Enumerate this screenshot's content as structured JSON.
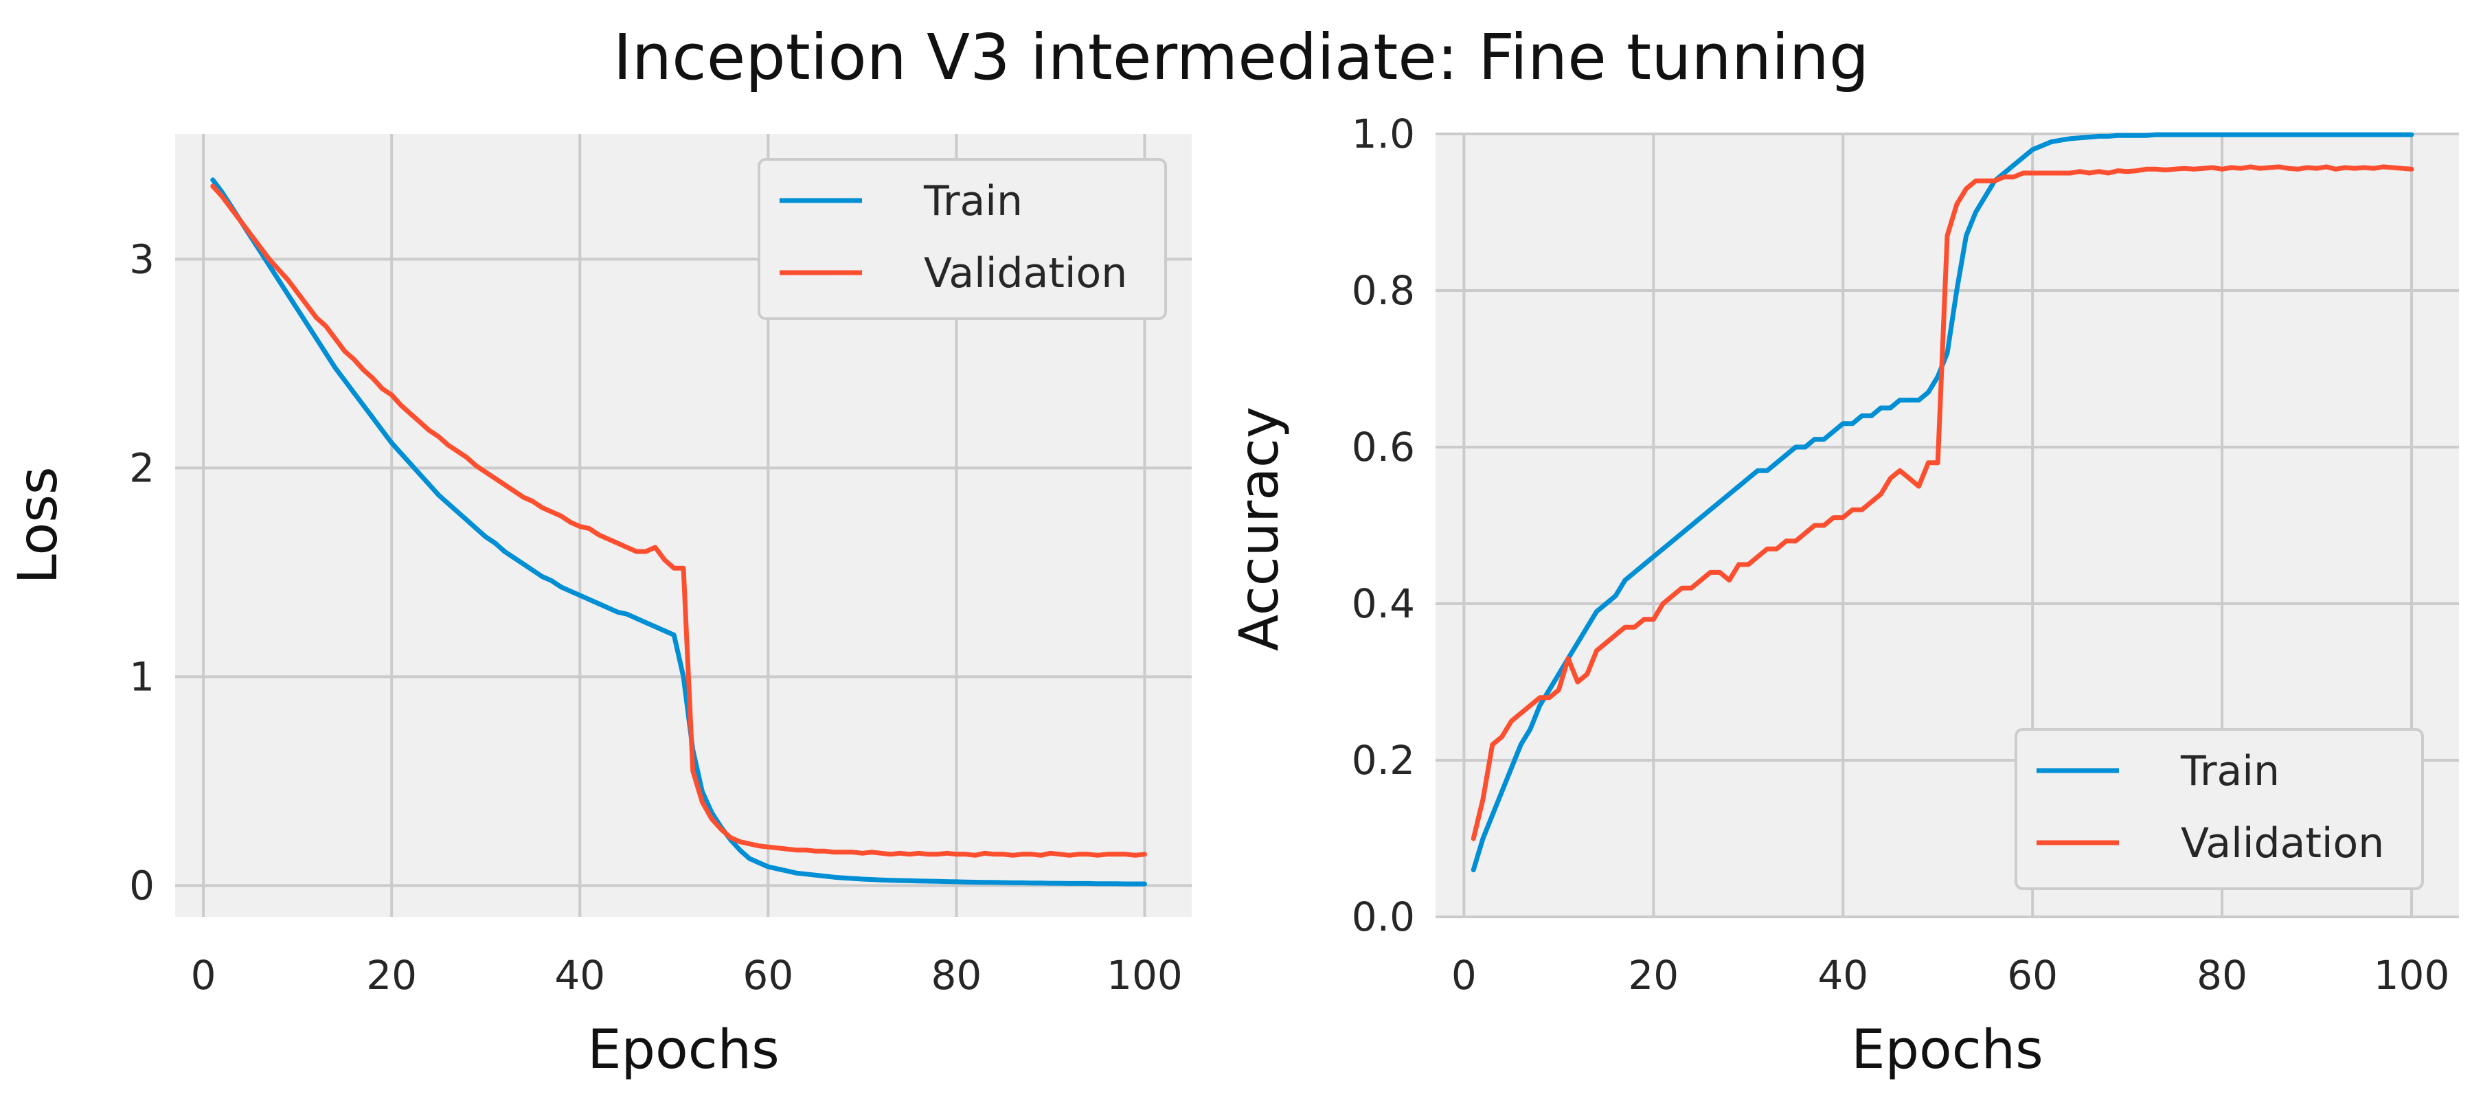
{
  "title": "Inception V3 intermediate: Fine tunning",
  "colors": {
    "train": "#008fd5",
    "validation": "#fc4f30",
    "plot_bg": "#f0f0f0",
    "grid": "#cbcbcb",
    "legend_bg": "#f0f0f0",
    "legend_border": "#cccccc"
  },
  "chart_data": [
    {
      "type": "line",
      "xlabel": "Epochs",
      "ylabel": "Loss",
      "xlim": [
        -3,
        105
      ],
      "ylim": [
        -0.15,
        3.6
      ],
      "xticks": [
        0,
        20,
        40,
        60,
        80,
        100
      ],
      "xtick_labels": [
        "0",
        "20",
        "40",
        "60",
        "80",
        "100"
      ],
      "yticks": [
        0,
        1,
        2,
        3
      ],
      "ytick_labels": [
        "0",
        "1",
        "2",
        "3"
      ],
      "grid": true,
      "legend": "top-right",
      "series": [
        {
          "name": "Train",
          "color_key": "train",
          "x": [
            1,
            2,
            3,
            4,
            5,
            6,
            7,
            8,
            9,
            10,
            11,
            12,
            13,
            14,
            15,
            16,
            17,
            18,
            19,
            20,
            21,
            22,
            23,
            24,
            25,
            26,
            27,
            28,
            29,
            30,
            31,
            32,
            33,
            34,
            35,
            36,
            37,
            38,
            39,
            40,
            41,
            42,
            43,
            44,
            45,
            46,
            47,
            48,
            49,
            50,
            51,
            52,
            53,
            54,
            55,
            56,
            57,
            58,
            59,
            60,
            61,
            62,
            63,
            64,
            65,
            66,
            67,
            68,
            69,
            70,
            71,
            72,
            73,
            74,
            75,
            76,
            77,
            78,
            79,
            80,
            81,
            82,
            83,
            84,
            85,
            86,
            87,
            88,
            89,
            90,
            91,
            92,
            93,
            94,
            95,
            96,
            97,
            98,
            99,
            100
          ],
          "y": [
            3.38,
            3.32,
            3.25,
            3.18,
            3.11,
            3.04,
            2.97,
            2.9,
            2.83,
            2.76,
            2.69,
            2.62,
            2.55,
            2.48,
            2.42,
            2.36,
            2.3,
            2.24,
            2.18,
            2.12,
            2.07,
            2.02,
            1.97,
            1.92,
            1.87,
            1.83,
            1.79,
            1.75,
            1.71,
            1.67,
            1.64,
            1.6,
            1.57,
            1.54,
            1.51,
            1.48,
            1.46,
            1.43,
            1.41,
            1.39,
            1.37,
            1.35,
            1.33,
            1.31,
            1.3,
            1.28,
            1.26,
            1.24,
            1.22,
            1.2,
            1.0,
            0.65,
            0.45,
            0.35,
            0.28,
            0.22,
            0.17,
            0.13,
            0.11,
            0.09,
            0.08,
            0.07,
            0.06,
            0.055,
            0.05,
            0.045,
            0.04,
            0.037,
            0.034,
            0.031,
            0.029,
            0.027,
            0.025,
            0.024,
            0.023,
            0.022,
            0.021,
            0.02,
            0.019,
            0.018,
            0.017,
            0.016,
            0.015,
            0.015,
            0.014,
            0.013,
            0.013,
            0.012,
            0.012,
            0.011,
            0.011,
            0.01,
            0.01,
            0.01,
            0.009,
            0.009,
            0.009,
            0.008,
            0.008,
            0.008
          ]
        },
        {
          "name": "Validation",
          "color_key": "validation",
          "x": [
            1,
            2,
            3,
            4,
            5,
            6,
            7,
            8,
            9,
            10,
            11,
            12,
            13,
            14,
            15,
            16,
            17,
            18,
            19,
            20,
            21,
            22,
            23,
            24,
            25,
            26,
            27,
            28,
            29,
            30,
            31,
            32,
            33,
            34,
            35,
            36,
            37,
            38,
            39,
            40,
            41,
            42,
            43,
            44,
            45,
            46,
            47,
            48,
            49,
            50,
            51,
            52,
            53,
            54,
            55,
            56,
            57,
            58,
            59,
            60,
            61,
            62,
            63,
            64,
            65,
            66,
            67,
            68,
            69,
            70,
            71,
            72,
            73,
            74,
            75,
            76,
            77,
            78,
            79,
            80,
            81,
            82,
            83,
            84,
            85,
            86,
            87,
            88,
            89,
            90,
            91,
            92,
            93,
            94,
            95,
            96,
            97,
            98,
            99,
            100
          ],
          "y": [
            3.35,
            3.3,
            3.24,
            3.18,
            3.12,
            3.06,
            3.0,
            2.95,
            2.9,
            2.84,
            2.78,
            2.72,
            2.68,
            2.62,
            2.56,
            2.52,
            2.47,
            2.43,
            2.38,
            2.35,
            2.3,
            2.26,
            2.22,
            2.18,
            2.15,
            2.11,
            2.08,
            2.05,
            2.01,
            1.98,
            1.95,
            1.92,
            1.89,
            1.86,
            1.84,
            1.81,
            1.79,
            1.77,
            1.74,
            1.72,
            1.71,
            1.68,
            1.66,
            1.64,
            1.62,
            1.6,
            1.6,
            1.62,
            1.56,
            1.52,
            1.52,
            0.55,
            0.4,
            0.32,
            0.27,
            0.23,
            0.21,
            0.2,
            0.19,
            0.185,
            0.18,
            0.175,
            0.17,
            0.17,
            0.165,
            0.165,
            0.16,
            0.16,
            0.16,
            0.155,
            0.16,
            0.155,
            0.15,
            0.155,
            0.15,
            0.155,
            0.15,
            0.15,
            0.155,
            0.15,
            0.15,
            0.145,
            0.155,
            0.15,
            0.15,
            0.145,
            0.15,
            0.15,
            0.145,
            0.155,
            0.15,
            0.145,
            0.15,
            0.15,
            0.145,
            0.15,
            0.15,
            0.15,
            0.145,
            0.15
          ]
        }
      ]
    },
    {
      "type": "line",
      "xlabel": "Epochs",
      "ylabel": "Accuracy",
      "xlim": [
        -3,
        105
      ],
      "ylim": [
        0.0,
        1.0
      ],
      "xticks": [
        0,
        20,
        40,
        60,
        80,
        100
      ],
      "xtick_labels": [
        "0",
        "20",
        "40",
        "60",
        "80",
        "100"
      ],
      "yticks": [
        0.0,
        0.2,
        0.4,
        0.6,
        0.8,
        1.0
      ],
      "ytick_labels": [
        "0.0",
        "0.2",
        "0.4",
        "0.6",
        "0.8",
        "1.0"
      ],
      "grid": true,
      "legend": "bottom-right",
      "series": [
        {
          "name": "Train",
          "color_key": "train",
          "x": [
            1,
            2,
            3,
            4,
            5,
            6,
            7,
            8,
            9,
            10,
            11,
            12,
            13,
            14,
            15,
            16,
            17,
            18,
            19,
            20,
            21,
            22,
            23,
            24,
            25,
            26,
            27,
            28,
            29,
            30,
            31,
            32,
            33,
            34,
            35,
            36,
            37,
            38,
            39,
            40,
            41,
            42,
            43,
            44,
            45,
            46,
            47,
            48,
            49,
            50,
            51,
            52,
            53,
            54,
            55,
            56,
            57,
            58,
            59,
            60,
            61,
            62,
            63,
            64,
            65,
            66,
            67,
            68,
            69,
            70,
            71,
            72,
            73,
            74,
            75,
            76,
            77,
            78,
            79,
            80,
            81,
            82,
            83,
            84,
            85,
            86,
            87,
            88,
            89,
            90,
            91,
            92,
            93,
            94,
            95,
            96,
            97,
            98,
            99,
            100
          ],
          "y": [
            0.06,
            0.1,
            0.13,
            0.16,
            0.19,
            0.22,
            0.24,
            0.27,
            0.29,
            0.31,
            0.33,
            0.35,
            0.37,
            0.39,
            0.4,
            0.41,
            0.43,
            0.44,
            0.45,
            0.46,
            0.47,
            0.48,
            0.49,
            0.5,
            0.51,
            0.52,
            0.53,
            0.54,
            0.55,
            0.56,
            0.57,
            0.57,
            0.58,
            0.59,
            0.6,
            0.6,
            0.61,
            0.61,
            0.62,
            0.63,
            0.63,
            0.64,
            0.64,
            0.65,
            0.65,
            0.66,
            0.66,
            0.66,
            0.67,
            0.69,
            0.72,
            0.8,
            0.87,
            0.9,
            0.92,
            0.94,
            0.95,
            0.96,
            0.97,
            0.98,
            0.985,
            0.99,
            0.992,
            0.994,
            0.995,
            0.996,
            0.997,
            0.997,
            0.998,
            0.998,
            0.998,
            0.998,
            0.999,
            0.999,
            0.999,
            0.999,
            0.999,
            0.999,
            0.999,
            0.999,
            0.999,
            0.999,
            0.999,
            0.999,
            0.999,
            0.999,
            0.999,
            0.999,
            0.999,
            0.999,
            0.999,
            0.999,
            0.999,
            0.999,
            0.999,
            0.999,
            0.999,
            0.999,
            0.999,
            0.999
          ]
        },
        {
          "name": "Validation",
          "color_key": "validation",
          "x": [
            1,
            2,
            3,
            4,
            5,
            6,
            7,
            8,
            9,
            10,
            11,
            12,
            13,
            14,
            15,
            16,
            17,
            18,
            19,
            20,
            21,
            22,
            23,
            24,
            25,
            26,
            27,
            28,
            29,
            30,
            31,
            32,
            33,
            34,
            35,
            36,
            37,
            38,
            39,
            40,
            41,
            42,
            43,
            44,
            45,
            46,
            47,
            48,
            49,
            50,
            51,
            52,
            53,
            54,
            55,
            56,
            57,
            58,
            59,
            60,
            61,
            62,
            63,
            64,
            65,
            66,
            67,
            68,
            69,
            70,
            71,
            72,
            73,
            74,
            75,
            76,
            77,
            78,
            79,
            80,
            81,
            82,
            83,
            84,
            85,
            86,
            87,
            88,
            89,
            90,
            91,
            92,
            93,
            94,
            95,
            96,
            97,
            98,
            99,
            100
          ],
          "y": [
            0.1,
            0.15,
            0.22,
            0.23,
            0.25,
            0.26,
            0.27,
            0.28,
            0.28,
            0.29,
            0.33,
            0.3,
            0.31,
            0.34,
            0.35,
            0.36,
            0.37,
            0.37,
            0.38,
            0.38,
            0.4,
            0.41,
            0.42,
            0.42,
            0.43,
            0.44,
            0.44,
            0.43,
            0.45,
            0.45,
            0.46,
            0.47,
            0.47,
            0.48,
            0.48,
            0.49,
            0.5,
            0.5,
            0.51,
            0.51,
            0.52,
            0.52,
            0.53,
            0.54,
            0.56,
            0.57,
            0.56,
            0.55,
            0.58,
            0.58,
            0.87,
            0.91,
            0.93,
            0.94,
            0.94,
            0.94,
            0.945,
            0.945,
            0.95,
            0.95,
            0.95,
            0.95,
            0.95,
            0.95,
            0.952,
            0.95,
            0.952,
            0.95,
            0.953,
            0.952,
            0.953,
            0.955,
            0.955,
            0.954,
            0.955,
            0.956,
            0.955,
            0.956,
            0.957,
            0.955,
            0.957,
            0.956,
            0.958,
            0.956,
            0.957,
            0.958,
            0.956,
            0.955,
            0.957,
            0.956,
            0.958,
            0.955,
            0.957,
            0.956,
            0.957,
            0.956,
            0.958,
            0.957,
            0.956,
            0.955
          ]
        }
      ]
    }
  ]
}
